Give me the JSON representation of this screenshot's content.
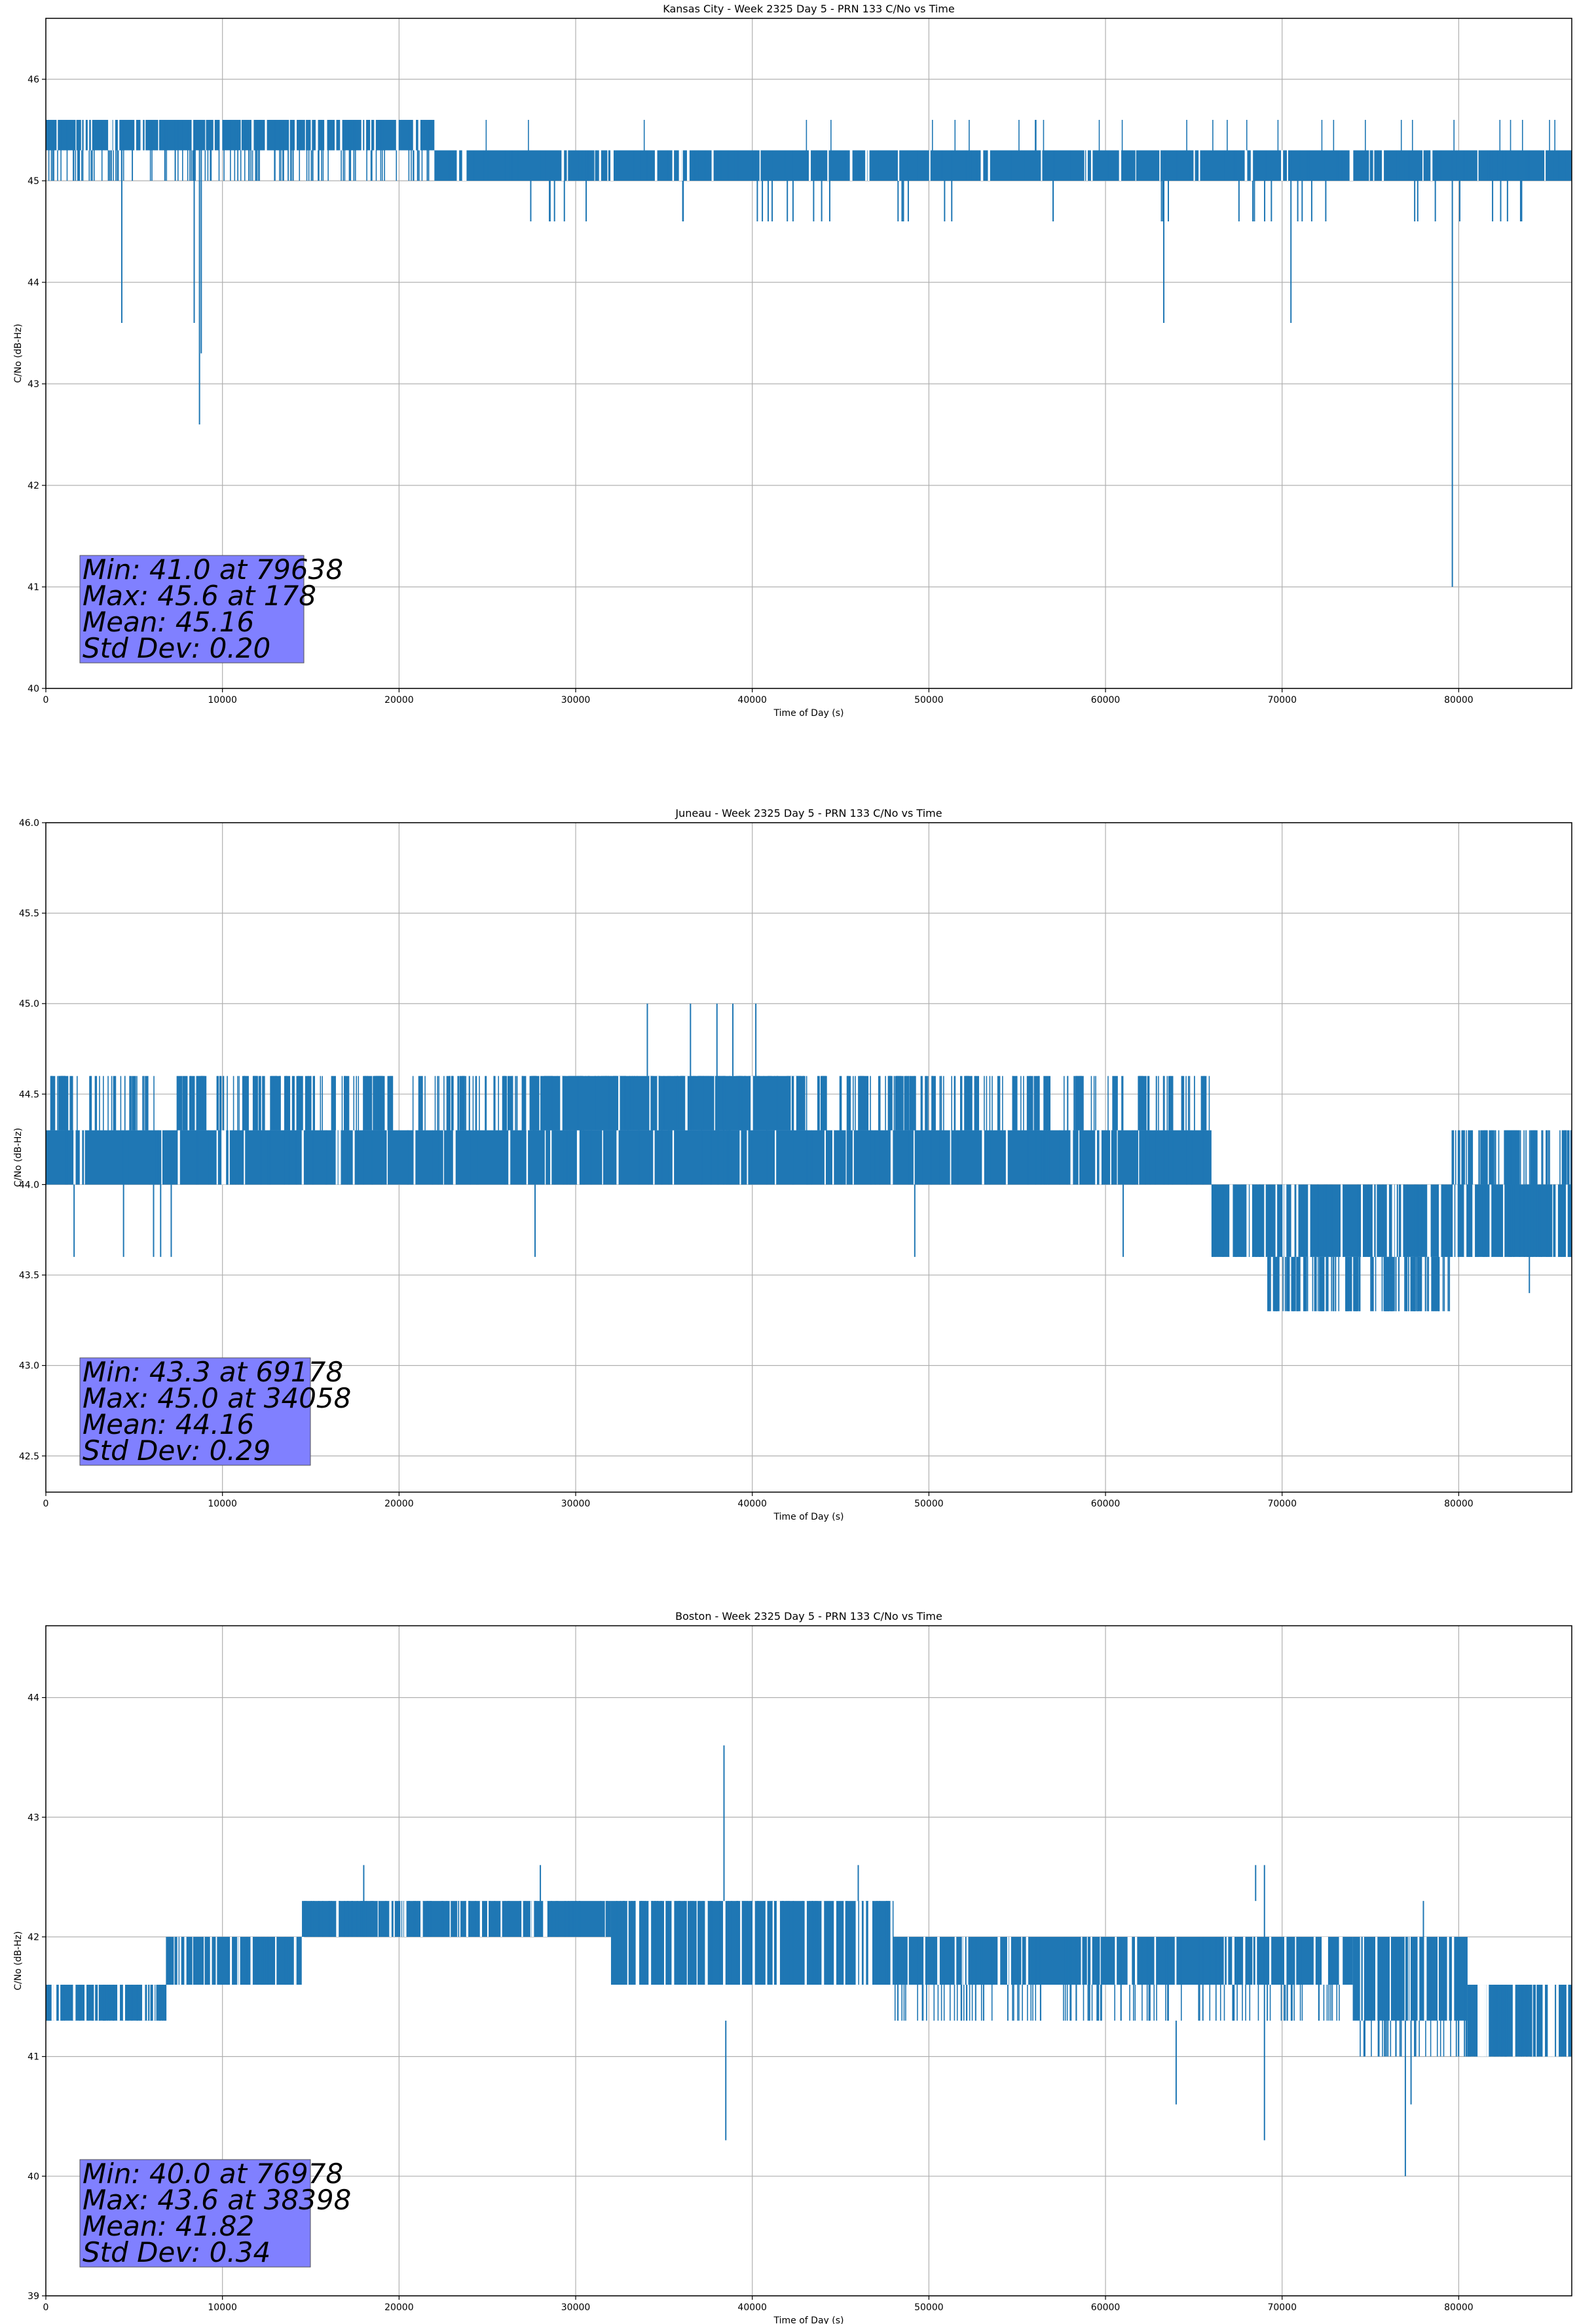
{
  "colors": {
    "series": "#1f77b4",
    "grid": "#b0b0b0",
    "stats_box": "#8080ff"
  },
  "chart_data": [
    {
      "type": "line",
      "title": "Kansas City - Week 2325 Day 5 - PRN 133 C/No vs Time",
      "xlabel": "Time of Day (s)",
      "ylabel": "C/No (dB-Hz)",
      "xlim": [
        0,
        86400
      ],
      "ylim": [
        40.0,
        46.6
      ],
      "xticks": [
        0,
        10000,
        20000,
        30000,
        40000,
        50000,
        60000,
        70000,
        80000
      ],
      "yticks": [
        40,
        41,
        42,
        43,
        44,
        45,
        46
      ],
      "ytick_decimals": 0,
      "grid": true,
      "stats": [
        "Min: 41.0 at 79638",
        "Max: 45.6 at 178",
        "Mean: 45.16",
        "Std Dev: 0.20"
      ],
      "series": [
        {
          "bands": [
            {
              "x": [
                0,
                22000
              ],
              "y": [
                45.3,
                45.6
              ],
              "gaps": 120,
              "gapLow": 45.0
            },
            {
              "x": [
                22000,
                86400
              ],
              "y": [
                45.0,
                45.3
              ],
              "gaps": 160,
              "gapLow": 45.0
            },
            {
              "x": [
                22000,
                86400
              ],
              "y": [
                45.3,
                45.3
              ],
              "gaps": 30,
              "gapLow": 45.3,
              "top": 45.6
            },
            {
              "x": [
                27000,
                86400
              ],
              "y": [
                45.0,
                45.0
              ],
              "gaps": 110,
              "gapLow": 44.6,
              "top": 45.0,
              "from": [
                27000,
                36000,
                39000,
                48000,
                57000,
                63000,
                67000,
                77000,
                80000
              ],
              "to": [
                31000,
                36100,
                45000,
                52000,
                57100,
                65000,
                73000,
                79000,
                84000
              ]
            }
          ],
          "spikes": [
            {
              "x": 4300,
              "low": 43.6
            },
            {
              "x": 8400,
              "low": 43.6
            },
            {
              "x": 8700,
              "low": 42.6
            },
            {
              "x": 8800,
              "low": 43.3
            },
            {
              "x": 63300,
              "low": 43.6
            },
            {
              "x": 70500,
              "low": 43.6
            },
            {
              "x": 79638,
              "low": 41.0
            }
          ]
        }
      ]
    },
    {
      "type": "line",
      "title": "Juneau - Week 2325 Day 5 - PRN 133 C/No vs Time",
      "xlabel": "Time of Day (s)",
      "ylabel": "C/No (dB-Hz)",
      "xlim": [
        0,
        86400
      ],
      "ylim": [
        42.3,
        46.0
      ],
      "xticks": [
        0,
        10000,
        20000,
        30000,
        40000,
        50000,
        60000,
        70000,
        80000
      ],
      "yticks": [
        42.5,
        43.0,
        43.5,
        44.0,
        44.5,
        45.0,
        45.5,
        46.0
      ],
      "ytick_decimals": 1,
      "grid": true,
      "stats": [
        "Min: 43.3 at 69178",
        "Max: 45.0 at 34058",
        "Mean: 44.16",
        "Std Dev: 0.29"
      ],
      "series": [
        {
          "bands": [
            {
              "x": [
                0,
                66000
              ],
              "y": [
                44.0,
                44.3
              ],
              "gaps": 140,
              "gapLow": 44.0
            },
            {
              "x": [
                0,
                66000
              ],
              "y": [
                44.3,
                44.6
              ],
              "gaps": 200,
              "gapLow": 44.3,
              "sparse": true
            },
            {
              "x": [
                28000,
                43000
              ],
              "y": [
                44.3,
                44.6
              ],
              "gaps": 30,
              "gapLow": 44.3
            },
            {
              "x": [
                66000,
                86400
              ],
              "y": [
                43.6,
                44.0
              ],
              "gaps": 120,
              "gapLow": 43.6
            },
            {
              "x": [
                69000,
                79500
              ],
              "y": [
                43.3,
                43.6
              ],
              "gaps": 80,
              "gapLow": 43.3,
              "sparse": true
            },
            {
              "x": [
                79500,
                86400
              ],
              "y": [
                44.0,
                44.3
              ],
              "gaps": 60,
              "gapLow": 44.0,
              "sparse": true
            }
          ],
          "spikes": [
            {
              "x": 1600,
              "low": 43.6
            },
            {
              "x": 4400,
              "low": 43.6
            },
            {
              "x": 6100,
              "low": 43.6
            },
            {
              "x": 6500,
              "low": 43.6
            },
            {
              "x": 7100,
              "low": 43.6
            },
            {
              "x": 27700,
              "low": 43.6
            },
            {
              "x": 49200,
              "low": 43.6
            },
            {
              "x": 61000,
              "low": 43.6
            },
            {
              "x": 84000,
              "low": 43.4
            },
            {
              "x": 34058,
              "high": 45.0,
              "low": 44.6
            },
            {
              "x": 36500,
              "high": 45.0,
              "low": 44.6
            },
            {
              "x": 38000,
              "high": 45.0,
              "low": 44.6
            },
            {
              "x": 38900,
              "high": 45.0,
              "low": 44.6
            },
            {
              "x": 40200,
              "high": 45.0,
              "low": 44.6
            }
          ]
        }
      ]
    },
    {
      "type": "line",
      "title": "Boston - Week 2325 Day 5 - PRN 133 C/No vs Time",
      "xlabel": "Time of Day (s)",
      "ylabel": "C/No (dB-Hz)",
      "xlim": [
        0,
        86400
      ],
      "ylim": [
        39.0,
        44.6
      ],
      "xticks": [
        0,
        10000,
        20000,
        30000,
        40000,
        50000,
        60000,
        70000,
        80000
      ],
      "yticks": [
        39,
        40,
        41,
        42,
        43,
        44
      ],
      "ytick_decimals": 0,
      "grid": true,
      "stats": [
        "Min: 40.0 at 76978",
        "Max: 43.6 at 38398",
        "Mean: 41.82",
        "Std Dev: 0.34"
      ],
      "series": [
        {
          "bands": [
            {
              "x": [
                0,
                6800
              ],
              "y": [
                41.3,
                41.6
              ],
              "gaps": 50,
              "gapLow": 41.3
            },
            {
              "x": [
                6800,
                14500
              ],
              "y": [
                41.6,
                42.0
              ],
              "gaps": 50,
              "gapLow": 41.6
            },
            {
              "x": [
                14500,
                32000
              ],
              "y": [
                42.0,
                42.3
              ],
              "gaps": 80,
              "gapLow": 42.0
            },
            {
              "x": [
                32000,
                48000
              ],
              "y": [
                41.6,
                42.3
              ],
              "gaps": 90,
              "gapLow": 41.6
            },
            {
              "x": [
                48000,
                74000
              ],
              "y": [
                41.6,
                42.0
              ],
              "gaps": 120,
              "gapLow": 41.3
            },
            {
              "x": [
                74000,
                80500
              ],
              "y": [
                41.3,
                42.0
              ],
              "gaps": 40,
              "gapLow": 41.0
            },
            {
              "x": [
                80500,
                86400
              ],
              "y": [
                41.0,
                41.6
              ],
              "gaps": 60,
              "gapLow": 41.0
            }
          ],
          "spikes": [
            {
              "x": 38398,
              "high": 43.6,
              "low": 42.3
            },
            {
              "x": 38500,
              "low": 40.3
            },
            {
              "x": 76978,
              "low": 40.0
            },
            {
              "x": 69000,
              "high": 42.6,
              "low": 40.3
            },
            {
              "x": 64000,
              "low": 40.6
            },
            {
              "x": 77300,
              "low": 40.6
            },
            {
              "x": 35500,
              "low": 41.3
            },
            {
              "x": 18000,
              "high": 42.6,
              "low": 42.3
            },
            {
              "x": 28000,
              "high": 42.6,
              "low": 42.3
            },
            {
              "x": 46000,
              "high": 42.6,
              "low": 42.3
            },
            {
              "x": 68500,
              "high": 42.6,
              "low": 42.3
            },
            {
              "x": 78000,
              "high": 42.3,
              "low": 41.3
            }
          ]
        }
      ]
    }
  ]
}
